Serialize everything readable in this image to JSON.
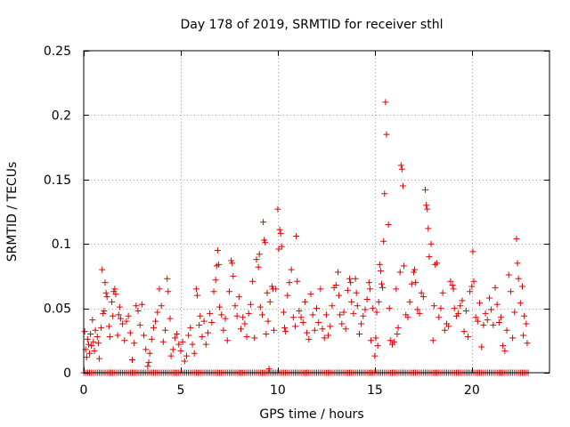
{
  "chart_data": {
    "type": "scatter",
    "title": "Day 178 of 2019, SRMTID for receiver sthl",
    "xlabel": "GPS time / hours",
    "ylabel": "SRMTID / TECUs",
    "xlim": [
      0,
      24
    ],
    "ylim": [
      0,
      0.25
    ],
    "xticks": [
      0,
      5,
      10,
      15,
      20
    ],
    "yticks": [
      0,
      0.05,
      0.1,
      0.15,
      0.2,
      0.25
    ],
    "xtick_labels": [
      "0",
      "5",
      "10",
      "15",
      "20"
    ],
    "ytick_labels": [
      "0",
      "0.05",
      "0.1",
      "0.15",
      "0.2",
      "0.25"
    ],
    "grid": true,
    "marker": "+",
    "color": "#dd0000",
    "baseline": {
      "x_start": 0.0,
      "x_end": 22.9,
      "step": 0.1,
      "y": 0
    },
    "series": [
      {
        "name": "SRMTID",
        "points": [
          [
            0.05,
            0.032
          ],
          [
            0.1,
            0.018
          ],
          [
            0.15,
            0.012
          ],
          [
            0.2,
            0.026
          ],
          [
            0.25,
            0.022
          ],
          [
            0.3,
            0.015
          ],
          [
            0.35,
            0.03
          ],
          [
            0.4,
            0.021
          ],
          [
            0.45,
            0.041
          ],
          [
            0.5,
            0.024
          ],
          [
            0.55,
            0.017
          ],
          [
            0.6,
            0.033
          ],
          [
            0.7,
            0.028
          ],
          [
            0.75,
            0.023
          ],
          [
            0.8,
            0.011
          ],
          [
            0.9,
            0.035
          ],
          [
            0.95,
            0.08
          ],
          [
            1.0,
            0.046
          ],
          [
            1.05,
            0.048
          ],
          [
            1.1,
            0.07
          ],
          [
            1.15,
            0.062
          ],
          [
            1.2,
            0.059
          ],
          [
            1.3,
            0.036
          ],
          [
            1.35,
            0.028
          ],
          [
            1.45,
            0.055
          ],
          [
            1.5,
            0.044
          ],
          [
            1.55,
            0.063
          ],
          [
            1.6,
            0.065
          ],
          [
            1.65,
            0.061
          ],
          [
            1.75,
            0.029
          ],
          [
            1.8,
            0.045
          ],
          [
            1.85,
            0.051
          ],
          [
            1.9,
            0.042
          ],
          [
            2.0,
            0.038
          ],
          [
            2.1,
            0.025
          ],
          [
            2.2,
            0.04
          ],
          [
            2.3,
            0.044
          ],
          [
            2.4,
            0.031
          ],
          [
            2.5,
            0.01
          ],
          [
            2.6,
            0.023
          ],
          [
            2.7,
            0.052
          ],
          [
            2.8,
            0.048
          ],
          [
            2.9,
            0.037
          ],
          [
            3.0,
            0.053
          ],
          [
            3.1,
            0.029
          ],
          [
            3.2,
            0.018
          ],
          [
            3.3,
            0.005
          ],
          [
            3.35,
            0.008
          ],
          [
            3.4,
            0.015
          ],
          [
            3.5,
            0.026
          ],
          [
            3.6,
            0.035
          ],
          [
            3.7,
            0.04
          ],
          [
            3.8,
            0.047
          ],
          [
            3.9,
            0.065
          ],
          [
            4.0,
            0.052
          ],
          [
            4.1,
            0.024
          ],
          [
            4.2,
            0.033
          ],
          [
            4.3,
            0.073
          ],
          [
            4.35,
            0.063
          ],
          [
            4.45,
            0.042
          ],
          [
            4.5,
            0.013
          ],
          [
            4.6,
            0.018
          ],
          [
            4.7,
            0.027
          ],
          [
            4.8,
            0.03
          ],
          [
            4.9,
            0.022
          ],
          [
            5.0,
            0.017
          ],
          [
            5.1,
            0.024
          ],
          [
            5.2,
            0.009
          ],
          [
            5.3,
            0.013
          ],
          [
            5.4,
            0.029
          ],
          [
            5.5,
            0.035
          ],
          [
            5.6,
            0.022
          ],
          [
            5.7,
            0.015
          ],
          [
            5.8,
            0.065
          ],
          [
            5.85,
            0.06
          ],
          [
            5.95,
            0.037
          ],
          [
            6.0,
            0.044
          ],
          [
            6.1,
            0.028
          ],
          [
            6.2,
            0.04
          ],
          [
            6.3,
            0.022
          ],
          [
            6.4,
            0.031
          ],
          [
            6.5,
            0.046
          ],
          [
            6.6,
            0.039
          ],
          [
            6.7,
            0.063
          ],
          [
            6.8,
            0.072
          ],
          [
            6.85,
            0.083
          ],
          [
            6.9,
            0.095
          ],
          [
            6.95,
            0.084
          ],
          [
            7.0,
            0.051
          ],
          [
            7.1,
            0.045
          ],
          [
            7.2,
            0.033
          ],
          [
            7.3,
            0.042
          ],
          [
            7.4,
            0.025
          ],
          [
            7.5,
            0.063
          ],
          [
            7.6,
            0.087
          ],
          [
            7.65,
            0.085
          ],
          [
            7.7,
            0.075
          ],
          [
            7.8,
            0.052
          ],
          [
            7.9,
            0.044
          ],
          [
            8.0,
            0.059
          ],
          [
            8.1,
            0.034
          ],
          [
            8.2,
            0.043
          ],
          [
            8.3,
            0.038
          ],
          [
            8.4,
            0.028
          ],
          [
            8.5,
            0.046
          ],
          [
            8.6,
            0.053
          ],
          [
            8.7,
            0.071
          ],
          [
            8.8,
            0.027
          ],
          [
            8.9,
            0.088
          ],
          [
            9.0,
            0.082
          ],
          [
            9.05,
            0.092
          ],
          [
            9.1,
            0.051
          ],
          [
            9.2,
            0.045
          ],
          [
            9.25,
            0.117
          ],
          [
            9.3,
            0.103
          ],
          [
            9.35,
            0.101
          ],
          [
            9.4,
            0.03
          ],
          [
            9.45,
            0.062
          ],
          [
            9.5,
            0.04
          ],
          [
            9.55,
            0.003
          ],
          [
            9.6,
            0.055
          ],
          [
            9.7,
            0.067
          ],
          [
            9.75,
            0.065
          ],
          [
            9.8,
            0.033
          ],
          [
            9.9,
            0.065
          ],
          [
            10.0,
            0.127
          ],
          [
            10.05,
            0.096
          ],
          [
            10.1,
            0.111
          ],
          [
            10.15,
            0.108
          ],
          [
            10.2,
            0.098
          ],
          [
            10.3,
            0.047
          ],
          [
            10.35,
            0.035
          ],
          [
            10.4,
            0.032
          ],
          [
            10.5,
            0.06
          ],
          [
            10.6,
            0.07
          ],
          [
            10.7,
            0.08
          ],
          [
            10.8,
            0.043
          ],
          [
            10.9,
            0.036
          ],
          [
            10.95,
            0.106
          ],
          [
            11.0,
            0.071
          ],
          [
            11.1,
            0.048
          ],
          [
            11.2,
            0.043
          ],
          [
            11.3,
            0.039
          ],
          [
            11.4,
            0.055
          ],
          [
            11.5,
            0.031
          ],
          [
            11.6,
            0.026
          ],
          [
            11.7,
            0.061
          ],
          [
            11.8,
            0.045
          ],
          [
            11.9,
            0.033
          ],
          [
            12.0,
            0.05
          ],
          [
            12.1,
            0.039
          ],
          [
            12.2,
            0.065
          ],
          [
            12.3,
            0.034
          ],
          [
            12.4,
            0.027
          ],
          [
            12.5,
            0.045
          ],
          [
            12.6,
            0.029
          ],
          [
            12.7,
            0.036
          ],
          [
            12.8,
            0.052
          ],
          [
            12.9,
            0.066
          ],
          [
            13.0,
            0.068
          ],
          [
            13.1,
            0.078
          ],
          [
            13.15,
            0.06
          ],
          [
            13.2,
            0.045
          ],
          [
            13.3,
            0.038
          ],
          [
            13.4,
            0.047
          ],
          [
            13.5,
            0.034
          ],
          [
            13.6,
            0.064
          ],
          [
            13.7,
            0.073
          ],
          [
            13.75,
            0.07
          ],
          [
            13.8,
            0.055
          ],
          [
            13.9,
            0.046
          ],
          [
            14.0,
            0.073
          ],
          [
            14.05,
            0.062
          ],
          [
            14.1,
            0.052
          ],
          [
            14.2,
            0.03
          ],
          [
            14.3,
            0.038
          ],
          [
            14.4,
            0.044
          ],
          [
            14.5,
            0.049
          ],
          [
            14.6,
            0.057
          ],
          [
            14.7,
            0.07
          ],
          [
            14.75,
            0.065
          ],
          [
            14.8,
            0.025
          ],
          [
            14.9,
            0.05
          ],
          [
            15.0,
            0.013
          ],
          [
            15.05,
            0.027
          ],
          [
            15.1,
            0.047
          ],
          [
            15.15,
            0.021
          ],
          [
            15.2,
            0.055
          ],
          [
            15.25,
            0.084
          ],
          [
            15.3,
            0.079
          ],
          [
            15.35,
            0.069
          ],
          [
            15.4,
            0.066
          ],
          [
            15.45,
            0.102
          ],
          [
            15.5,
            0.139
          ],
          [
            15.55,
            0.21
          ],
          [
            15.6,
            0.185
          ],
          [
            15.7,
            0.115
          ],
          [
            15.75,
            0.05
          ],
          [
            15.8,
            0.025
          ],
          [
            15.9,
            0.022
          ],
          [
            16.0,
            0.024
          ],
          [
            16.1,
            0.065
          ],
          [
            16.15,
            0.03
          ],
          [
            16.2,
            0.035
          ],
          [
            16.3,
            0.078
          ],
          [
            16.35,
            0.161
          ],
          [
            16.4,
            0.158
          ],
          [
            16.45,
            0.145
          ],
          [
            16.5,
            0.083
          ],
          [
            16.6,
            0.045
          ],
          [
            16.7,
            0.043
          ],
          [
            16.8,
            0.055
          ],
          [
            16.9,
            0.069
          ],
          [
            17.0,
            0.078
          ],
          [
            17.05,
            0.08
          ],
          [
            17.1,
            0.07
          ],
          [
            17.2,
            0.049
          ],
          [
            17.3,
            0.046
          ],
          [
            17.4,
            0.062
          ],
          [
            17.5,
            0.059
          ],
          [
            17.6,
            0.142
          ],
          [
            17.65,
            0.13
          ],
          [
            17.7,
            0.127
          ],
          [
            17.75,
            0.112
          ],
          [
            17.8,
            0.09
          ],
          [
            17.9,
            0.1
          ],
          [
            18.0,
            0.025
          ],
          [
            18.05,
            0.052
          ],
          [
            18.1,
            0.084
          ],
          [
            18.2,
            0.085
          ],
          [
            18.3,
            0.043
          ],
          [
            18.4,
            0.05
          ],
          [
            18.5,
            0.062
          ],
          [
            18.6,
            0.033
          ],
          [
            18.7,
            0.038
          ],
          [
            18.8,
            0.036
          ],
          [
            18.9,
            0.071
          ],
          [
            19.0,
            0.068
          ],
          [
            19.05,
            0.065
          ],
          [
            19.1,
            0.05
          ],
          [
            19.2,
            0.044
          ],
          [
            19.3,
            0.046
          ],
          [
            19.4,
            0.052
          ],
          [
            19.5,
            0.056
          ],
          [
            19.6,
            0.032
          ],
          [
            19.7,
            0.048
          ],
          [
            19.8,
            0.028
          ],
          [
            19.9,
            0.063
          ],
          [
            20.0,
            0.067
          ],
          [
            20.05,
            0.094
          ],
          [
            20.1,
            0.071
          ],
          [
            20.2,
            0.043
          ],
          [
            20.3,
            0.04
          ],
          [
            20.4,
            0.054
          ],
          [
            20.5,
            0.02
          ],
          [
            20.6,
            0.037
          ],
          [
            20.7,
            0.046
          ],
          [
            20.8,
            0.041
          ],
          [
            20.9,
            0.058
          ],
          [
            21.0,
            0.049
          ],
          [
            21.1,
            0.037
          ],
          [
            21.2,
            0.066
          ],
          [
            21.3,
            0.053
          ],
          [
            21.4,
            0.039
          ],
          [
            21.5,
            0.043
          ],
          [
            21.6,
            0.021
          ],
          [
            21.7,
            0.017
          ],
          [
            21.8,
            0.033
          ],
          [
            21.9,
            0.076
          ],
          [
            22.0,
            0.063
          ],
          [
            22.1,
            0.027
          ],
          [
            22.2,
            0.047
          ],
          [
            22.3,
            0.104
          ],
          [
            22.35,
            0.085
          ],
          [
            22.4,
            0.073
          ],
          [
            22.5,
            0.054
          ],
          [
            22.6,
            0.067
          ],
          [
            22.65,
            0.029
          ],
          [
            22.7,
            0.044
          ],
          [
            22.8,
            0.038
          ],
          [
            22.85,
            0.023
          ]
        ]
      }
    ]
  }
}
